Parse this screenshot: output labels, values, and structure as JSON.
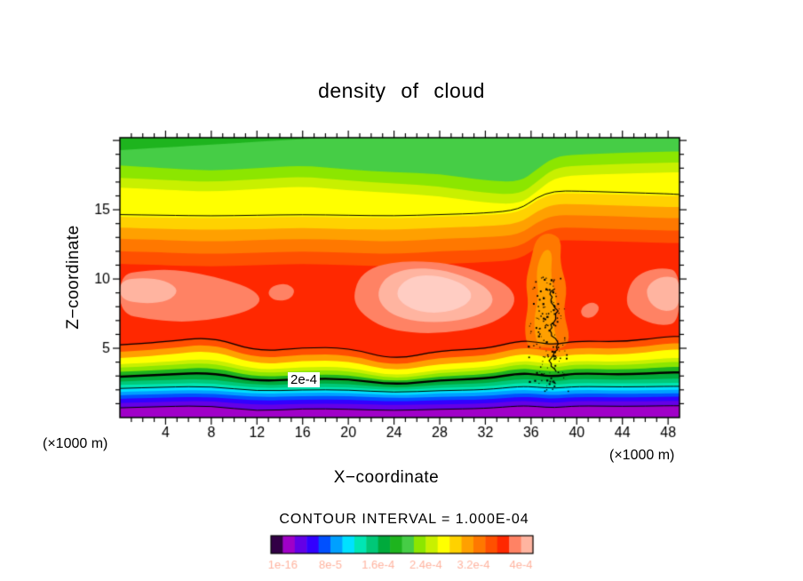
{
  "page": {
    "background": "#ffffff"
  },
  "header": {
    "title": "density of cloud"
  },
  "axes": {
    "z_label": "Z−coordinate",
    "x_label": "X−coordinate",
    "unit_left": "(×1000 m)",
    "unit_right": "(×1000 m)"
  },
  "footer": {
    "contour_interval_text": "CONTOUR INTERVAL = 1.000E-04"
  },
  "chart_data": {
    "type": "heatmap",
    "title": "density of cloud",
    "xlabel": "X-coordinate (×1000 m)",
    "ylabel": "Z-coordinate (×1000 m)",
    "grid": false,
    "x_range": [
      0,
      49
    ],
    "z_range": [
      0,
      20.2
    ],
    "x_ticks": [
      4,
      8,
      12,
      16,
      20,
      24,
      28,
      32,
      36,
      40,
      44,
      48
    ],
    "z_ticks": [
      5,
      10,
      15
    ],
    "contour_interval": "1.000E-04",
    "labeled_contour": {
      "value": "2e-4",
      "x": 15.5,
      "z": 2.75
    },
    "background_color": "#1eb41e",
    "x_samples": [
      0,
      4,
      8,
      12,
      16,
      20,
      24,
      28,
      32,
      35,
      36.5,
      38,
      40,
      44,
      48,
      49
    ],
    "bands": [
      {
        "color": "#46cd46",
        "z": [
          19.3,
          19.5,
          19.7,
          19.9,
          20.1,
          20.3,
          20.3,
          20.3,
          20.3,
          20.3,
          20.3,
          20.3,
          20.3,
          20.3,
          20.3,
          20.3
        ]
      },
      {
        "color": "#8ce600",
        "z": [
          18.2,
          18.0,
          17.8,
          18.0,
          18.2,
          17.9,
          17.7,
          17.6,
          17.1,
          17.0,
          17.9,
          18.8,
          19.0,
          19.1,
          19.2,
          19.2
        ]
      },
      {
        "color": "#c8f000",
        "z": [
          17.3,
          17.15,
          17.0,
          17.2,
          17.4,
          17.1,
          16.9,
          16.7,
          16.2,
          16.1,
          17.0,
          18.0,
          18.2,
          18.3,
          18.4,
          18.4
        ]
      },
      {
        "color": "#ffff00",
        "z": [
          16.6,
          16.45,
          16.3,
          16.5,
          16.7,
          16.4,
          16.2,
          16.0,
          15.5,
          15.4,
          16.3,
          17.3,
          17.5,
          17.6,
          17.7,
          17.7
        ]
      },
      {
        "color": "#ffd200",
        "z": [
          14.5,
          14.45,
          14.4,
          14.45,
          14.5,
          14.45,
          14.4,
          14.5,
          14.6,
          14.8,
          15.7,
          16.2,
          16.2,
          16.1,
          16.0,
          16.0
        ]
      },
      {
        "color": "#ffa000",
        "z": [
          13.7,
          13.6,
          13.55,
          13.6,
          13.7,
          13.6,
          13.55,
          13.7,
          13.8,
          14.0,
          14.9,
          15.4,
          15.4,
          15.3,
          15.2,
          15.2
        ]
      },
      {
        "color": "#ff7800",
        "z": [
          12.9,
          12.8,
          12.7,
          12.8,
          12.9,
          12.8,
          12.7,
          12.9,
          13.0,
          13.2,
          14.1,
          14.6,
          14.6,
          14.5,
          14.4,
          14.4
        ]
      },
      {
        "color": "#ff5000",
        "z": [
          12.0,
          11.9,
          11.8,
          11.9,
          12.0,
          11.9,
          11.8,
          12.0,
          12.1,
          12.3,
          13.2,
          13.7,
          13.7,
          13.6,
          13.5,
          13.5
        ]
      },
      {
        "color": "#ff2800",
        "z": [
          11.1,
          11.0,
          10.9,
          11.0,
          11.1,
          11.0,
          10.9,
          11.1,
          11.2,
          11.4,
          12.3,
          12.8,
          12.8,
          12.7,
          12.6,
          12.6
        ]
      },
      {
        "color": "#ff5000",
        "z": [
          5.2,
          5.4,
          5.8,
          4.7,
          5.0,
          5.0,
          4.1,
          4.8,
          4.9,
          5.5,
          5.4,
          5.2,
          5.5,
          5.4,
          5.8,
          5.8
        ]
      },
      {
        "color": "#ffa000",
        "z": [
          4.75,
          4.95,
          5.35,
          4.25,
          4.55,
          4.55,
          3.7,
          4.35,
          4.45,
          5.05,
          4.95,
          4.75,
          5.05,
          4.95,
          5.35,
          5.35
        ]
      },
      {
        "color": "#ffff00",
        "z": [
          4.3,
          4.5,
          4.9,
          3.8,
          4.1,
          4.1,
          3.3,
          3.9,
          4.0,
          4.6,
          4.5,
          4.3,
          4.6,
          4.5,
          4.9,
          4.9
        ]
      },
      {
        "color": "#c8f000",
        "z": [
          3.85,
          4.0,
          4.3,
          3.4,
          3.65,
          3.65,
          2.95,
          3.5,
          3.6,
          4.1,
          4.0,
          3.85,
          4.1,
          4.0,
          4.3,
          4.3
        ]
      },
      {
        "color": "#8ce600",
        "z": [
          3.6,
          3.75,
          4.0,
          3.15,
          3.4,
          3.4,
          2.75,
          3.25,
          3.35,
          3.85,
          3.75,
          3.6,
          3.85,
          3.75,
          4.0,
          4.0
        ]
      },
      {
        "color": "#1eb41e",
        "z": [
          3.3,
          3.45,
          3.65,
          2.9,
          3.1,
          3.1,
          2.55,
          3.0,
          3.1,
          3.55,
          3.45,
          3.3,
          3.55,
          3.45,
          3.65,
          3.65
        ]
      },
      {
        "color": "#00aa3c",
        "z": [
          2.9,
          3.0,
          3.15,
          2.55,
          2.7,
          2.7,
          2.3,
          2.65,
          2.7,
          3.1,
          3.0,
          2.9,
          3.1,
          3.0,
          3.15,
          3.15
        ]
      },
      {
        "color": "#00c878",
        "z": [
          2.6,
          2.7,
          2.8,
          2.3,
          2.45,
          2.45,
          2.1,
          2.4,
          2.45,
          2.8,
          2.7,
          2.6,
          2.8,
          2.7,
          2.8,
          2.8
        ]
      },
      {
        "color": "#00e6b4",
        "z": [
          2.35,
          2.45,
          2.5,
          2.1,
          2.2,
          2.2,
          1.95,
          2.15,
          2.2,
          2.5,
          2.45,
          2.35,
          2.5,
          2.45,
          2.5,
          2.5
        ]
      },
      {
        "color": "#00e1ff",
        "z": [
          2.1,
          2.2,
          2.25,
          1.9,
          2.0,
          2.0,
          1.8,
          1.95,
          2.0,
          2.25,
          2.2,
          2.1,
          2.25,
          2.2,
          2.25,
          2.25
        ]
      },
      {
        "color": "#00a0ff",
        "z": [
          1.85,
          1.95,
          2.0,
          1.7,
          1.8,
          1.8,
          1.6,
          1.75,
          1.8,
          2.0,
          1.95,
          1.85,
          2.0,
          1.95,
          2.0,
          2.0
        ]
      },
      {
        "color": "#0050ff",
        "z": [
          1.6,
          1.7,
          1.75,
          1.45,
          1.55,
          1.55,
          1.4,
          1.5,
          1.55,
          1.75,
          1.7,
          1.6,
          1.75,
          1.7,
          1.75,
          1.75
        ]
      },
      {
        "color": "#3200ff",
        "z": [
          1.35,
          1.45,
          1.5,
          1.2,
          1.3,
          1.3,
          1.15,
          1.25,
          1.3,
          1.5,
          1.45,
          1.35,
          1.5,
          1.45,
          1.5,
          1.5
        ]
      },
      {
        "color": "#6400e6",
        "z": [
          1.05,
          1.15,
          1.2,
          0.9,
          1.0,
          1.0,
          0.9,
          0.95,
          1.0,
          1.2,
          1.15,
          1.05,
          1.2,
          1.15,
          1.2,
          1.2
        ]
      },
      {
        "color": "#a000c8",
        "z": [
          0.7,
          0.8,
          0.85,
          0.45,
          0.65,
          0.6,
          0.5,
          0.6,
          0.65,
          0.85,
          0.8,
          0.7,
          0.85,
          0.8,
          0.85,
          0.85
        ]
      }
    ],
    "blobs": [
      {
        "color": "#ff7800",
        "points": [
          [
            35.7,
            4.9
          ],
          [
            35.4,
            6.5
          ],
          [
            35.8,
            8.2
          ],
          [
            35.5,
            9.8
          ],
          [
            36.0,
            11.4
          ],
          [
            36.4,
            12.9
          ],
          [
            37.5,
            13.4
          ],
          [
            38.7,
            12.9
          ],
          [
            38.5,
            11.2
          ],
          [
            39.2,
            9.4
          ],
          [
            38.8,
            7.6
          ],
          [
            39.5,
            5.6
          ],
          [
            38.6,
            4.9
          ],
          [
            37.2,
            5.1
          ]
        ]
      },
      {
        "color": "#ffa000",
        "points": [
          [
            36.5,
            5.2
          ],
          [
            36.2,
            7.0
          ],
          [
            36.7,
            8.8
          ],
          [
            36.4,
            10.6
          ],
          [
            37.1,
            12.2
          ],
          [
            37.9,
            12.0
          ],
          [
            37.7,
            10.2
          ],
          [
            38.3,
            8.4
          ],
          [
            37.9,
            6.6
          ],
          [
            38.4,
            5.4
          ],
          [
            37.4,
            5.3
          ]
        ]
      },
      {
        "color": "#ff8264",
        "points": [
          [
            0,
            10.3
          ],
          [
            2,
            10.6
          ],
          [
            4.5,
            10.7
          ],
          [
            7,
            10.4
          ],
          [
            9.5,
            9.9
          ],
          [
            11.5,
            9.3
          ],
          [
            12.4,
            8.6
          ],
          [
            11.8,
            7.9
          ],
          [
            10,
            7.4
          ],
          [
            7.5,
            7.0
          ],
          [
            5,
            6.9
          ],
          [
            2.5,
            7.1
          ],
          [
            0,
            7.5
          ]
        ]
      },
      {
        "color": "#ffb4a0",
        "points": [
          [
            0,
            9.9
          ],
          [
            2,
            10.1
          ],
          [
            4,
            9.9
          ],
          [
            5.2,
            9.2
          ],
          [
            4.3,
            8.4
          ],
          [
            2.2,
            8.2
          ],
          [
            0,
            8.5
          ]
        ]
      },
      {
        "color": "#ff8264",
        "points": [
          [
            13.3,
            9.5
          ],
          [
            14.6,
            9.7
          ],
          [
            15.4,
            9.2
          ],
          [
            14.9,
            8.5
          ],
          [
            13.6,
            8.4
          ],
          [
            12.9,
            8.9
          ]
        ]
      },
      {
        "color": "#ff8264",
        "points": [
          [
            20.5,
            9.0
          ],
          [
            21.0,
            10.2
          ],
          [
            22.5,
            11.0
          ],
          [
            25,
            11.3
          ],
          [
            28,
            11.2
          ],
          [
            30.5,
            10.8
          ],
          [
            32.5,
            10.2
          ],
          [
            34.2,
            9.4
          ],
          [
            34.7,
            8.4
          ],
          [
            33.8,
            7.3
          ],
          [
            31.5,
            6.5
          ],
          [
            28.5,
            6.1
          ],
          [
            25.5,
            6.1
          ],
          [
            23,
            6.5
          ],
          [
            21.3,
            7.4
          ],
          [
            20.6,
            8.2
          ]
        ]
      },
      {
        "color": "#ffb4a0",
        "points": [
          [
            22.6,
            9.3
          ],
          [
            23.5,
            10.3
          ],
          [
            25.5,
            10.8
          ],
          [
            28,
            10.7
          ],
          [
            30.5,
            10.1
          ],
          [
            32.3,
            9.3
          ],
          [
            32.8,
            8.3
          ],
          [
            31.6,
            7.4
          ],
          [
            29,
            6.9
          ],
          [
            26,
            6.9
          ],
          [
            23.8,
            7.4
          ],
          [
            22.7,
            8.3
          ]
        ]
      },
      {
        "color": "#ffcdc3",
        "points": [
          [
            24.3,
            9.4
          ],
          [
            25.5,
            10.2
          ],
          [
            27.5,
            10.3
          ],
          [
            29.8,
            9.8
          ],
          [
            31.0,
            8.9
          ],
          [
            30.2,
            8.0
          ],
          [
            28.0,
            7.5
          ],
          [
            25.8,
            7.7
          ],
          [
            24.3,
            8.5
          ]
        ]
      },
      {
        "color": "#ff8264",
        "points": [
          [
            40.3,
            7.9
          ],
          [
            41.3,
            8.4
          ],
          [
            42.1,
            8.0
          ],
          [
            41.5,
            7.2
          ],
          [
            40.5,
            7.2
          ]
        ]
      },
      {
        "color": "#ff8264",
        "points": [
          [
            44.3,
            8.6
          ],
          [
            44.8,
            9.9
          ],
          [
            46,
            10.6
          ],
          [
            47.5,
            10.8
          ],
          [
            49,
            10.6
          ],
          [
            49,
            6.9
          ],
          [
            47.5,
            6.6
          ],
          [
            45.8,
            7.0
          ],
          [
            44.6,
            7.7
          ]
        ]
      },
      {
        "color": "#ffb4a0",
        "points": [
          [
            46.0,
            9.3
          ],
          [
            47.0,
            10.1
          ],
          [
            48.3,
            10.2
          ],
          [
            49,
            9.9
          ],
          [
            49,
            7.9
          ],
          [
            47.6,
            7.6
          ],
          [
            46.4,
            8.2
          ]
        ]
      }
    ],
    "contour_lines": [
      {
        "width": 1,
        "z": [
          14.65,
          14.6,
          14.55,
          14.6,
          14.65,
          14.6,
          14.55,
          14.65,
          14.75,
          15.0,
          15.9,
          16.35,
          16.35,
          16.25,
          16.15,
          16.1
        ]
      },
      {
        "width": 1.2,
        "z": [
          5.25,
          5.45,
          5.85,
          4.75,
          5.05,
          5.05,
          4.15,
          4.85,
          4.95,
          5.55,
          5.45,
          5.25,
          5.55,
          5.45,
          5.85,
          5.85
        ]
      },
      {
        "width": 2.4,
        "z": [
          2.95,
          3.1,
          3.25,
          2.6,
          2.8,
          2.8,
          2.35,
          2.7,
          2.8,
          3.2,
          3.1,
          2.95,
          3.2,
          3.1,
          3.25,
          3.25
        ]
      },
      {
        "width": 1,
        "z": [
          2.1,
          2.2,
          2.25,
          1.9,
          2.0,
          2.0,
          1.8,
          1.95,
          2.0,
          2.25,
          2.2,
          2.1,
          2.25,
          2.2,
          2.25,
          2.25
        ]
      },
      {
        "width": 1,
        "z": [
          0.7,
          0.8,
          0.85,
          0.45,
          0.65,
          0.6,
          0.5,
          0.6,
          0.65,
          0.85,
          0.8,
          0.7,
          0.85,
          0.8,
          0.85,
          0.85
        ]
      }
    ],
    "noise": {
      "x_center": 37.6,
      "x_spread": 1.6,
      "z_min": 1.9,
      "z_max": 10.3,
      "count": 150,
      "seed": 11
    },
    "squiggle": {
      "x": 38.0,
      "z_min": 3.3,
      "z_max": 9.4,
      "amp": 0.3,
      "seed": 5
    },
    "colorbar": {
      "segments": 22,
      "colors": [
        "#320046",
        "#a000c8",
        "#6400e6",
        "#3200ff",
        "#0050ff",
        "#00a0ff",
        "#00e1ff",
        "#00e6b4",
        "#00c878",
        "#00aa3c",
        "#1eb41e",
        "#46cd46",
        "#8ce600",
        "#c8f000",
        "#ffff00",
        "#ffd200",
        "#ffa000",
        "#ff7800",
        "#ff5000",
        "#ff2800",
        "#ff8264",
        "#ffb4a0"
      ],
      "labels": [
        "1e-16",
        "8e-5",
        "1.6e-4",
        "2.4e-4",
        "3.2e-4",
        "4e-4"
      ],
      "label_boundaries": [
        1,
        5,
        9,
        13,
        17,
        21
      ]
    }
  }
}
